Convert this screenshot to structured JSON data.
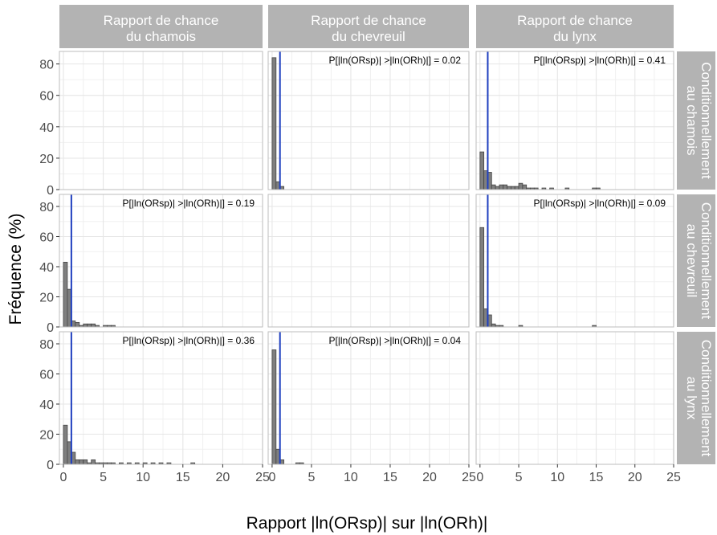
{
  "chart_data": {
    "type": "bar",
    "layout": "facet-grid",
    "xlabel": "Rapport |ln(ORsp)| sur |ln(ORh)|",
    "ylabel": "Fréquence (%)",
    "xlim": [
      -0.5,
      25
    ],
    "ylim": [
      0,
      88
    ],
    "xticks": [
      0,
      5,
      10,
      15,
      20,
      25
    ],
    "yticks": [
      0,
      20,
      40,
      60,
      80
    ],
    "bin_width": 0.5,
    "reference_line": {
      "x": 1,
      "color": "#1f3fbf"
    },
    "grid": true,
    "colors": {
      "strip": "#b3b3b3",
      "bar_fill": "#7f7f7f",
      "bar_stroke": "#444444",
      "panel_border": "#bdbdbd",
      "grid": "#e6e6e6"
    },
    "column_labels": [
      {
        "line1": "Rapport de chance",
        "line2": "du chamois"
      },
      {
        "line1": "Rapport de chance",
        "line2": "du chevreuil"
      },
      {
        "line1": "Rapport de chance",
        "line2": "du lynx"
      }
    ],
    "row_labels": [
      {
        "line1": "Conditionnellement",
        "line2": "au chamois"
      },
      {
        "line1": "Conditionnellement",
        "line2": "au chevreuil"
      },
      {
        "line1": "Conditionnellement",
        "line2": "au lynx"
      }
    ],
    "panels": [
      {
        "row": 0,
        "col": 0,
        "empty": true
      },
      {
        "row": 0,
        "col": 1,
        "annotation": "P[|ln(ORsp)| >|ln(ORh)|] =  0.02",
        "bins": [
          [
            0,
            84
          ],
          [
            0.5,
            5
          ],
          [
            1,
            2
          ]
        ]
      },
      {
        "row": 0,
        "col": 2,
        "annotation": "P[|ln(ORsp)| >|ln(ORh)|] =  0.41",
        "bins": [
          [
            0,
            24
          ],
          [
            0.5,
            12
          ],
          [
            1,
            11
          ],
          [
            1.5,
            3
          ],
          [
            2,
            2
          ],
          [
            2.5,
            3
          ],
          [
            3,
            3
          ],
          [
            3.5,
            2
          ],
          [
            4,
            2
          ],
          [
            4.5,
            2
          ],
          [
            5,
            4
          ],
          [
            5.5,
            3
          ],
          [
            6,
            1
          ],
          [
            6.5,
            1
          ],
          [
            7,
            1
          ],
          [
            8,
            1
          ],
          [
            9,
            1
          ],
          [
            11,
            1
          ],
          [
            14.5,
            1
          ],
          [
            15,
            1
          ]
        ]
      },
      {
        "row": 1,
        "col": 0,
        "annotation": "P[|ln(ORsp)| >|ln(ORh)|] =  0.19",
        "bins": [
          [
            0,
            43
          ],
          [
            0.5,
            25
          ],
          [
            1,
            4
          ],
          [
            1.5,
            3
          ],
          [
            2,
            1
          ],
          [
            2.5,
            2
          ],
          [
            3,
            2
          ],
          [
            3.5,
            2
          ],
          [
            4,
            1
          ],
          [
            5,
            1
          ],
          [
            5.5,
            1
          ],
          [
            6,
            1
          ]
        ]
      },
      {
        "row": 1,
        "col": 1,
        "empty": true
      },
      {
        "row": 1,
        "col": 2,
        "annotation": "P[|ln(ORsp)| >|ln(ORh)|] =  0.09",
        "bins": [
          [
            0,
            66
          ],
          [
            0.5,
            12
          ],
          [
            1,
            8
          ],
          [
            1.5,
            2
          ],
          [
            2,
            1
          ],
          [
            2.5,
            1
          ],
          [
            5,
            1
          ],
          [
            14.5,
            1
          ]
        ]
      },
      {
        "row": 2,
        "col": 0,
        "annotation": "P[|ln(ORsp)| >|ln(ORh)|] =  0.36",
        "bins": [
          [
            0,
            26
          ],
          [
            0.5,
            15
          ],
          [
            1,
            8
          ],
          [
            1.5,
            3
          ],
          [
            2,
            3
          ],
          [
            2.5,
            3
          ],
          [
            3,
            1
          ],
          [
            3.5,
            3
          ],
          [
            4,
            1
          ],
          [
            4.5,
            1
          ],
          [
            5,
            1
          ],
          [
            5.5,
            1
          ],
          [
            6,
            1
          ],
          [
            7,
            1
          ],
          [
            8,
            1
          ],
          [
            9,
            1
          ],
          [
            10,
            1
          ],
          [
            11,
            1
          ],
          [
            12,
            1
          ],
          [
            13,
            1
          ],
          [
            16,
            1
          ]
        ]
      },
      {
        "row": 2,
        "col": 1,
        "annotation": "P[|ln(ORsp)| >|ln(ORh)|] =  0.04",
        "bins": [
          [
            0,
            76
          ],
          [
            0.5,
            10
          ],
          [
            1,
            3
          ],
          [
            3,
            1
          ],
          [
            3.5,
            1
          ]
        ]
      },
      {
        "row": 2,
        "col": 2,
        "empty": true
      }
    ]
  }
}
